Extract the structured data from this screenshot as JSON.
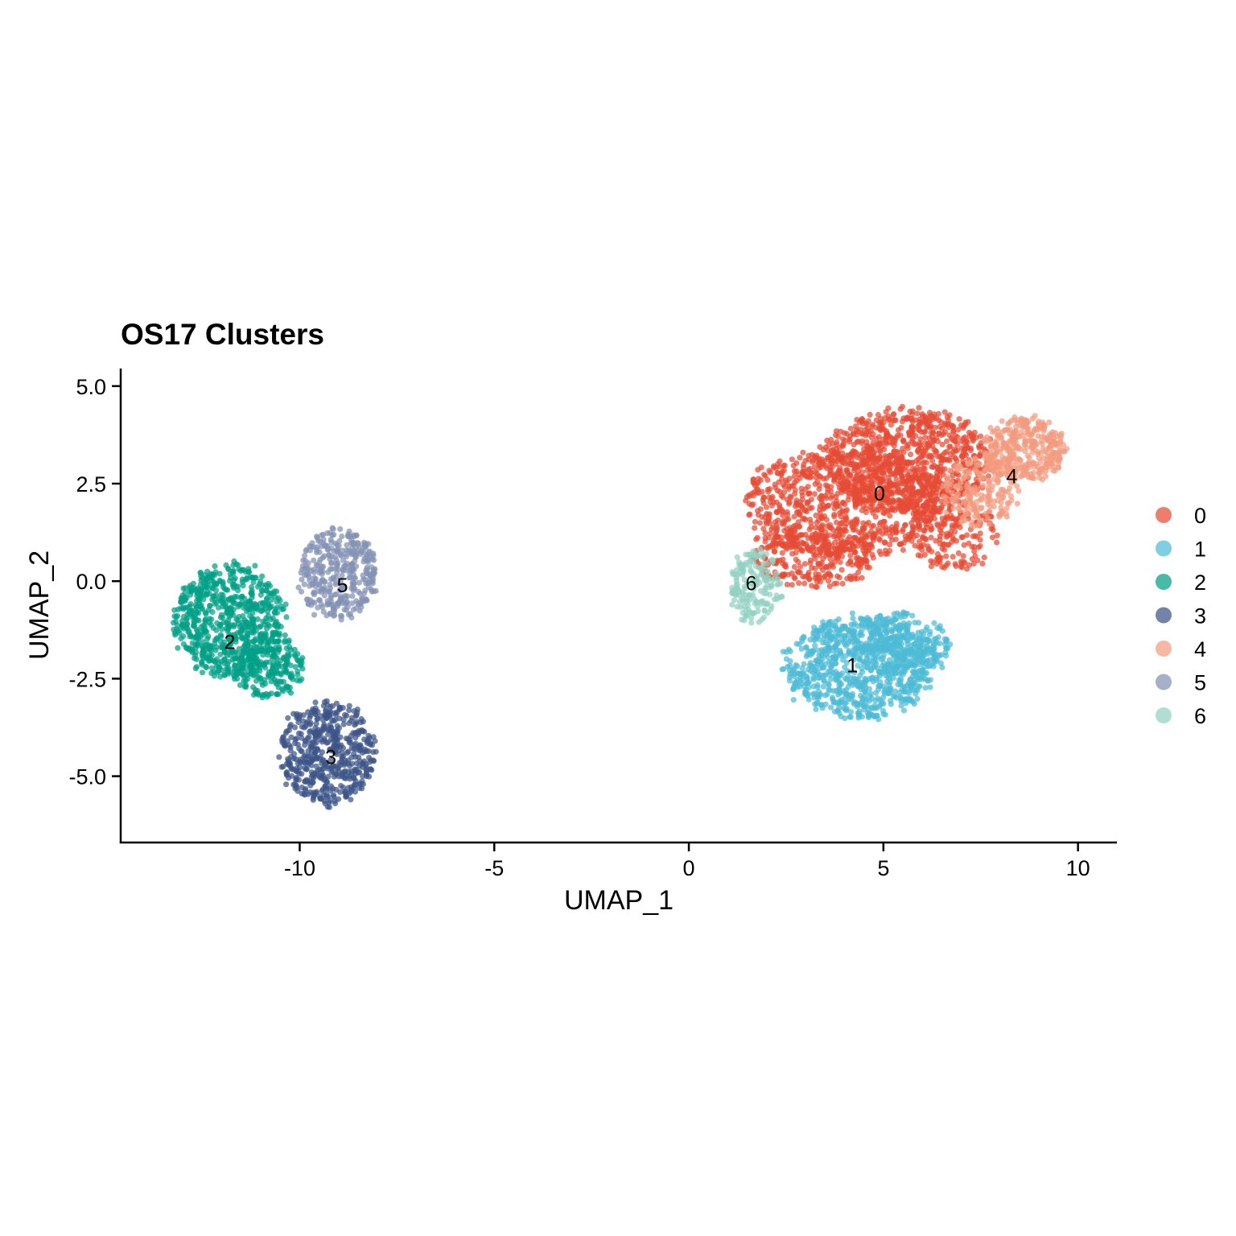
{
  "chart_data": {
    "type": "scatter",
    "title": "OS17 Clusters",
    "xlabel": "UMAP_1",
    "ylabel": "UMAP_2",
    "xlim": [
      -14.6,
      11.0
    ],
    "ylim": [
      -6.7,
      5.45
    ],
    "x_ticks": [
      -10,
      -5,
      0,
      5,
      10
    ],
    "x_tick_labels": [
      "-10",
      "-5",
      "0",
      "5",
      "10"
    ],
    "y_ticks": [
      5.0,
      2.5,
      0.0,
      -2.5,
      -5.0
    ],
    "y_tick_labels": [
      "5.0",
      "2.5",
      "0.0",
      "-2.5",
      "-5.0"
    ],
    "legend_position": "right",
    "grid": false,
    "clusters": [
      {
        "name": "0",
        "label_pos": [
          4.9,
          2.25
        ],
        "color": "#E64B35"
      },
      {
        "name": "1",
        "label_pos": [
          4.2,
          -2.15
        ],
        "color": "#4DBBD5"
      },
      {
        "name": "2",
        "label_pos": [
          -11.8,
          -1.55
        ],
        "color": "#00A087"
      },
      {
        "name": "3",
        "label_pos": [
          -9.2,
          -4.5
        ],
        "color": "#3C5488"
      },
      {
        "name": "4",
        "label_pos": [
          8.3,
          2.7
        ],
        "color": "#F39B7F"
      },
      {
        "name": "5",
        "label_pos": [
          -8.9,
          -0.1
        ],
        "color": "#8491B4"
      },
      {
        "name": "6",
        "label_pos": [
          1.6,
          -0.05
        ],
        "color": "#91D1C2"
      }
    ],
    "blobs": [
      {
        "cluster": "0",
        "cx": 4.0,
        "cy": 2.0,
        "rx": 2.9,
        "ry": 1.55,
        "n": 900
      },
      {
        "cluster": "0",
        "cx": 5.6,
        "cy": 3.1,
        "rx": 2.4,
        "ry": 1.45,
        "n": 800
      },
      {
        "cluster": "0",
        "cx": 3.2,
        "cy": 0.6,
        "rx": 1.7,
        "ry": 0.9,
        "n": 250
      },
      {
        "cluster": "0",
        "cx": 6.8,
        "cy": 1.2,
        "rx": 1.3,
        "ry": 1.0,
        "n": 180
      },
      {
        "cluster": "4",
        "cx": 8.6,
        "cy": 3.4,
        "rx": 1.2,
        "ry": 0.9,
        "n": 360
      },
      {
        "cluster": "4",
        "cx": 7.5,
        "cy": 2.3,
        "rx": 1.1,
        "ry": 1.0,
        "n": 200
      },
      {
        "cluster": "1",
        "cx": 4.4,
        "cy": -2.2,
        "rx": 2.1,
        "ry": 1.45,
        "n": 800
      },
      {
        "cluster": "1",
        "cx": 5.4,
        "cy": -1.6,
        "rx": 1.5,
        "ry": 0.9,
        "n": 260
      },
      {
        "cluster": "6",
        "cx": 1.7,
        "cy": -0.1,
        "rx": 0.75,
        "ry": 1.05,
        "n": 170
      },
      {
        "cluster": "2",
        "cx": -11.8,
        "cy": -1.0,
        "rx": 1.6,
        "ry": 1.6,
        "n": 700
      },
      {
        "cluster": "2",
        "cx": -10.8,
        "cy": -2.2,
        "rx": 1.0,
        "ry": 0.9,
        "n": 220
      },
      {
        "cluster": "3",
        "cx": -9.3,
        "cy": -4.4,
        "rx": 1.35,
        "ry": 1.45,
        "n": 520
      },
      {
        "cluster": "5",
        "cx": -9.0,
        "cy": 0.2,
        "rx": 1.1,
        "ry": 1.3,
        "n": 360
      }
    ]
  }
}
